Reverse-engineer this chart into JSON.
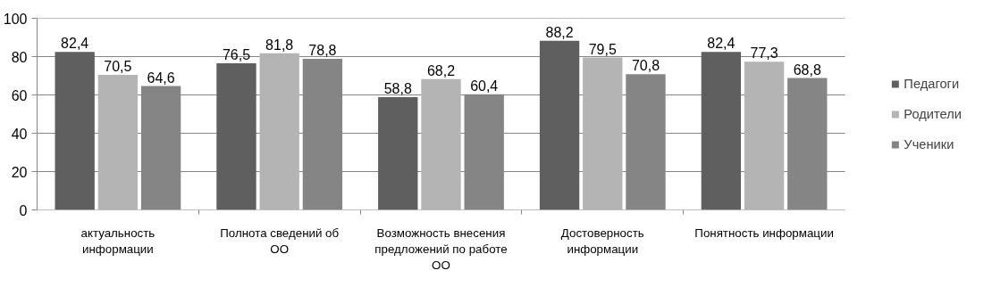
{
  "chart_data": {
    "type": "bar",
    "categories": [
      "актуальность информации",
      "Полнота сведений об ОО",
      "Возможность внесения предложений по работе ОО",
      "Достоверность информации",
      "Понятность информации"
    ],
    "series": [
      {
        "name": "Педагоги",
        "color": "#5f5f5f",
        "values": [
          82.4,
          76.5,
          58.8,
          88.2,
          82.4
        ],
        "value_labels": [
          "82,4",
          "76,5",
          "58,8",
          "88,2",
          "82,4"
        ]
      },
      {
        "name": "Родители",
        "color": "#b4b4b4",
        "values": [
          70.5,
          81.8,
          68.2,
          79.5,
          77.3
        ],
        "value_labels": [
          "70,5",
          "81,8",
          "68,2",
          "79,5",
          "77,3"
        ]
      },
      {
        "name": "Ученики",
        "color": "#858585",
        "values": [
          64.6,
          78.8,
          60.4,
          70.8,
          68.8
        ],
        "value_labels": [
          "64,6",
          "78,8",
          "60,4",
          "70,8",
          "68,8"
        ]
      }
    ],
    "ylim": [
      0,
      100
    ],
    "yticks": [
      0,
      20,
      40,
      60,
      80,
      100
    ],
    "grid": "y",
    "legend": "right"
  }
}
